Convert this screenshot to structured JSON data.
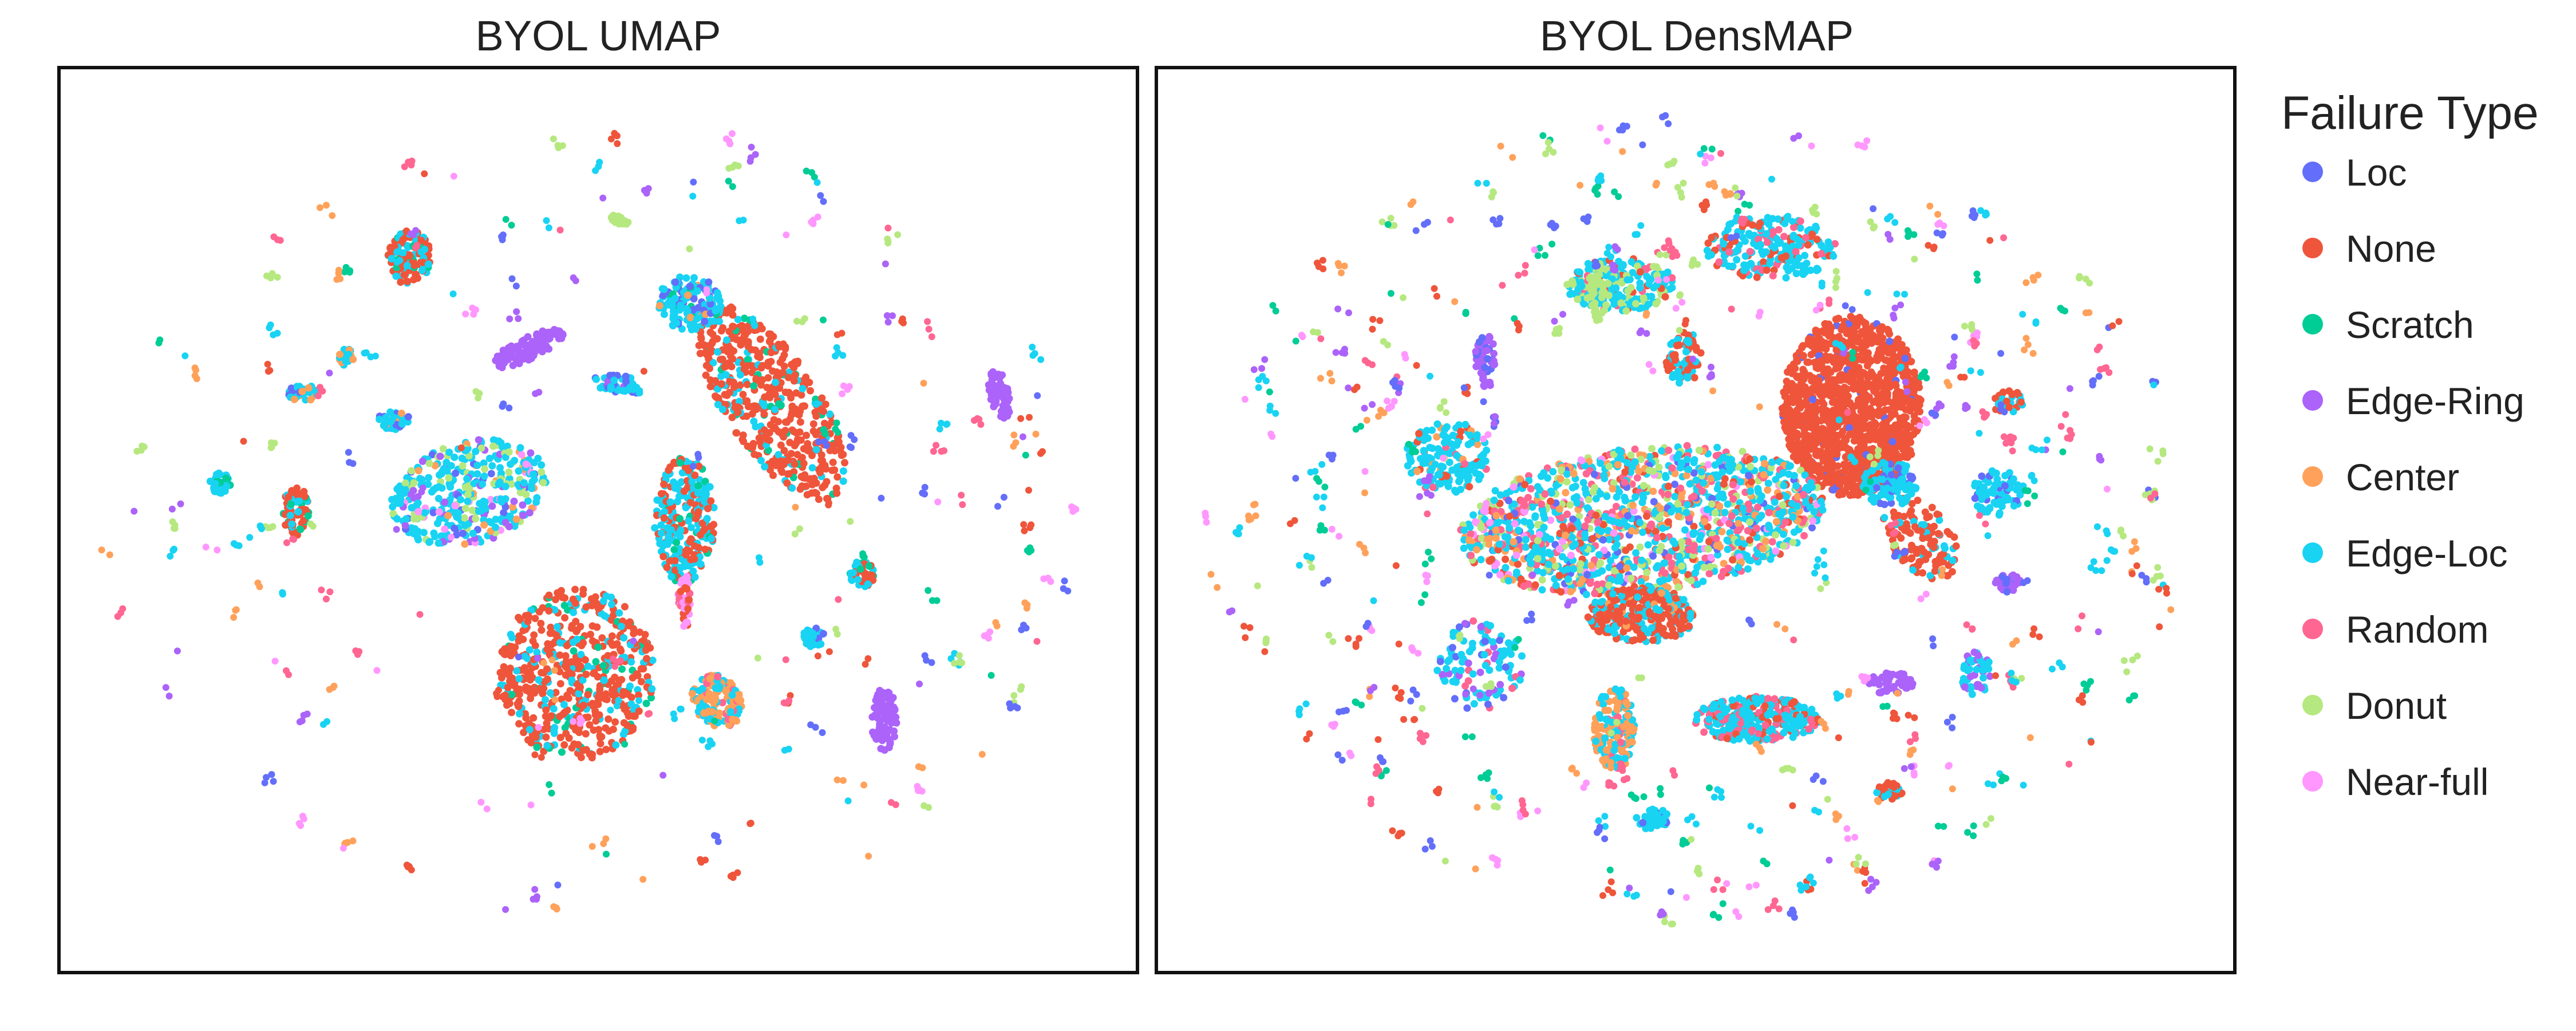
{
  "chart_data": [
    {
      "type": "scatter",
      "title": "BYOL UMAP",
      "xlabel": "",
      "ylabel": "",
      "grid": false,
      "axis_ticks": false,
      "clusters": [
        {
          "x": 0.66,
          "y": 0.37,
          "rx": 0.045,
          "ry": 0.12,
          "rot": -28,
          "n": 520,
          "mix": {
            "None": 0.82,
            "Edge-Loc": 0.12,
            "Scratch": 0.06
          }
        },
        {
          "x": 0.48,
          "y": 0.67,
          "rx": 0.072,
          "ry": 0.095,
          "rot": 0,
          "n": 560,
          "mix": {
            "None": 0.72,
            "Edge-Loc": 0.22,
            "Scratch": 0.06
          }
        },
        {
          "x": 0.58,
          "y": 0.5,
          "rx": 0.028,
          "ry": 0.07,
          "rot": 0,
          "n": 260,
          "mix": {
            "Edge-Loc": 0.5,
            "None": 0.38,
            "Scratch": 0.12
          }
        },
        {
          "x": 0.58,
          "y": 0.59,
          "rx": 0.006,
          "ry": 0.03,
          "rot": 0,
          "n": 40,
          "mix": {
            "Near-full": 0.5,
            "Random": 0.3,
            "None": 0.2
          }
        },
        {
          "x": 0.325,
          "y": 0.21,
          "rx": 0.02,
          "ry": 0.03,
          "rot": 0,
          "n": 120,
          "mix": {
            "None": 0.6,
            "Edge-Loc": 0.3,
            "Scratch": 0.1
          }
        },
        {
          "x": 0.22,
          "y": 0.49,
          "rx": 0.012,
          "ry": 0.028,
          "rot": 0,
          "n": 70,
          "mix": {
            "None": 0.65,
            "Edge-Loc": 0.2,
            "Scratch": 0.15
          }
        },
        {
          "x": 0.38,
          "y": 0.47,
          "rx": 0.075,
          "ry": 0.055,
          "rot": -25,
          "n": 380,
          "mix": {
            "Edge-Loc": 0.55,
            "Donut": 0.18,
            "Edge-Ring": 0.1,
            "Loc": 0.08,
            "Near-full": 0.05,
            "Center": 0.04
          }
        },
        {
          "x": 0.435,
          "y": 0.31,
          "rx": 0.038,
          "ry": 0.012,
          "rot": -30,
          "n": 110,
          "mix": {
            "Edge-Ring": 1
          }
        },
        {
          "x": 0.585,
          "y": 0.26,
          "rx": 0.03,
          "ry": 0.03,
          "rot": 0,
          "n": 140,
          "mix": {
            "Edge-Loc": 0.55,
            "Loc": 0.25,
            "Center": 0.1,
            "Scratch": 0.1
          }
        },
        {
          "x": 0.61,
          "y": 0.7,
          "rx": 0.022,
          "ry": 0.03,
          "rot": -20,
          "n": 140,
          "mix": {
            "Center": 0.55,
            "Edge-Loc": 0.35,
            "Random": 0.1
          }
        },
        {
          "x": 0.765,
          "y": 0.72,
          "rx": 0.012,
          "ry": 0.035,
          "rot": 0,
          "n": 90,
          "mix": {
            "Edge-Ring": 1
          }
        },
        {
          "x": 0.872,
          "y": 0.36,
          "rx": 0.009,
          "ry": 0.028,
          "rot": -10,
          "n": 60,
          "mix": {
            "Edge-Ring": 1
          }
        },
        {
          "x": 0.52,
          "y": 0.35,
          "rx": 0.025,
          "ry": 0.01,
          "rot": 10,
          "n": 50,
          "mix": {
            "Edge-Loc": 0.6,
            "Loc": 0.3,
            "Edge-Ring": 0.1
          }
        },
        {
          "x": 0.225,
          "y": 0.36,
          "rx": 0.016,
          "ry": 0.01,
          "rot": 0,
          "n": 40,
          "mix": {
            "Edge-Loc": 0.7,
            "Center": 0.2,
            "Loc": 0.1
          }
        },
        {
          "x": 0.31,
          "y": 0.39,
          "rx": 0.016,
          "ry": 0.01,
          "rot": 0,
          "n": 40,
          "mix": {
            "Edge-Loc": 0.7,
            "Loc": 0.2,
            "Center": 0.1
          }
        },
        {
          "x": 0.745,
          "y": 0.56,
          "rx": 0.012,
          "ry": 0.015,
          "rot": 0,
          "n": 40,
          "mix": {
            "Edge-Loc": 0.5,
            "None": 0.35,
            "Scratch": 0.15
          }
        },
        {
          "x": 0.15,
          "y": 0.46,
          "rx": 0.01,
          "ry": 0.012,
          "rot": 0,
          "n": 35,
          "mix": {
            "Edge-Loc": 0.8,
            "Scratch": 0.2
          }
        },
        {
          "x": 0.7,
          "y": 0.63,
          "rx": 0.01,
          "ry": 0.012,
          "rot": 0,
          "n": 35,
          "mix": {
            "Edge-Loc": 0.8,
            "Loc": 0.2
          }
        },
        {
          "x": 0.267,
          "y": 0.32,
          "rx": 0.007,
          "ry": 0.01,
          "rot": 0,
          "n": 25,
          "mix": {
            "Edge-Loc": 0.7,
            "Center": 0.3
          }
        },
        {
          "x": 0.52,
          "y": 0.17,
          "rx": 0.01,
          "ry": 0.006,
          "rot": 30,
          "n": 20,
          "mix": {
            "Donut": 1
          }
        }
      ],
      "scatter_points": 200
    },
    {
      "type": "scatter",
      "title": "BYOL DensMAP",
      "xlabel": "",
      "ylabel": "",
      "grid": false,
      "axis_ticks": false,
      "clusters": [
        {
          "x": 0.645,
          "y": 0.375,
          "rx": 0.065,
          "ry": 0.1,
          "rot": 0,
          "n": 1300,
          "mix": {
            "None": 0.97,
            "Loc": 0.03
          }
        },
        {
          "x": 0.45,
          "y": 0.5,
          "rx": 0.17,
          "ry": 0.08,
          "rot": -8,
          "n": 1400,
          "mix": {
            "Edge-Loc": 0.38,
            "Random": 0.18,
            "Donut": 0.14,
            "Center": 0.1,
            "None": 0.08,
            "Near-full": 0.06,
            "Loc": 0.06
          }
        },
        {
          "x": 0.45,
          "y": 0.605,
          "rx": 0.05,
          "ry": 0.03,
          "rot": 0,
          "n": 280,
          "mix": {
            "None": 0.65,
            "Edge-Loc": 0.3,
            "Center": 0.05
          }
        },
        {
          "x": 0.555,
          "y": 0.72,
          "rx": 0.06,
          "ry": 0.025,
          "rot": 0,
          "n": 300,
          "mix": {
            "Edge-Loc": 0.65,
            "Random": 0.2,
            "None": 0.15
          }
        },
        {
          "x": 0.425,
          "y": 0.73,
          "rx": 0.02,
          "ry": 0.045,
          "rot": 0,
          "n": 160,
          "mix": {
            "Center": 0.55,
            "Edge-Loc": 0.4,
            "Random": 0.05
          }
        },
        {
          "x": 0.49,
          "y": 0.32,
          "rx": 0.018,
          "ry": 0.03,
          "rot": 0,
          "n": 80,
          "mix": {
            "None": 0.6,
            "Edge-Loc": 0.4
          }
        },
        {
          "x": 0.43,
          "y": 0.24,
          "rx": 0.05,
          "ry": 0.03,
          "rot": 0,
          "n": 230,
          "mix": {
            "Edge-Loc": 0.6,
            "Donut": 0.25,
            "None": 0.1,
            "Random": 0.05
          }
        },
        {
          "x": 0.57,
          "y": 0.2,
          "rx": 0.06,
          "ry": 0.035,
          "rot": 0,
          "n": 220,
          "mix": {
            "Edge-Loc": 0.65,
            "None": 0.25,
            "Random": 0.1
          }
        },
        {
          "x": 0.71,
          "y": 0.52,
          "rx": 0.03,
          "ry": 0.05,
          "rot": -30,
          "n": 120,
          "mix": {
            "None": 0.8,
            "Edge-Loc": 0.2
          }
        },
        {
          "x": 0.68,
          "y": 0.46,
          "rx": 0.025,
          "ry": 0.025,
          "rot": 0,
          "n": 100,
          "mix": {
            "Edge-Loc": 0.9,
            "Loc": 0.1
          }
        },
        {
          "x": 0.78,
          "y": 0.47,
          "rx": 0.025,
          "ry": 0.025,
          "rot": 0,
          "n": 80,
          "mix": {
            "Edge-Loc": 0.85,
            "Loc": 0.15
          }
        },
        {
          "x": 0.27,
          "y": 0.43,
          "rx": 0.04,
          "ry": 0.04,
          "rot": 0,
          "n": 160,
          "mix": {
            "Edge-Loc": 0.7,
            "None": 0.15,
            "Center": 0.1,
            "Random": 0.05
          }
        },
        {
          "x": 0.3,
          "y": 0.66,
          "rx": 0.04,
          "ry": 0.05,
          "rot": 0,
          "n": 110,
          "mix": {
            "Edge-Loc": 0.55,
            "Edge-Ring": 0.2,
            "Loc": 0.15,
            "Random": 0.1
          }
        },
        {
          "x": 0.76,
          "y": 0.67,
          "rx": 0.015,
          "ry": 0.025,
          "rot": 0,
          "n": 50,
          "mix": {
            "Edge-Loc": 0.6,
            "Edge-Ring": 0.4
          }
        },
        {
          "x": 0.68,
          "y": 0.68,
          "rx": 0.022,
          "ry": 0.012,
          "rot": 0,
          "n": 50,
          "mix": {
            "Edge-Ring": 1
          }
        },
        {
          "x": 0.305,
          "y": 0.325,
          "rx": 0.01,
          "ry": 0.03,
          "rot": 0,
          "n": 50,
          "mix": {
            "Edge-Ring": 0.85,
            "Loc": 0.15
          }
        },
        {
          "x": 0.79,
          "y": 0.57,
          "rx": 0.012,
          "ry": 0.01,
          "rot": 0,
          "n": 30,
          "mix": {
            "Edge-Ring": 0.7,
            "Loc": 0.3
          }
        },
        {
          "x": 0.46,
          "y": 0.83,
          "rx": 0.015,
          "ry": 0.012,
          "rot": 0,
          "n": 40,
          "mix": {
            "Edge-Loc": 0.9,
            "Loc": 0.1
          }
        },
        {
          "x": 0.68,
          "y": 0.8,
          "rx": 0.012,
          "ry": 0.01,
          "rot": 0,
          "n": 35,
          "mix": {
            "None": 0.7,
            "Edge-Loc": 0.3
          }
        },
        {
          "x": 0.41,
          "y": 0.25,
          "rx": 0.01,
          "ry": 0.03,
          "rot": 0,
          "n": 40,
          "mix": {
            "Donut": 1
          }
        },
        {
          "x": 0.79,
          "y": 0.37,
          "rx": 0.014,
          "ry": 0.014,
          "rot": 0,
          "n": 35,
          "mix": {
            "None": 0.6,
            "Edge-Loc": 0.4
          }
        }
      ],
      "scatter_points": 420
    }
  ],
  "legend": {
    "title": "Failure Type",
    "placement": "right",
    "items": [
      {
        "label": "Loc",
        "color": "#636efa"
      },
      {
        "label": "None",
        "color": "#ef553b"
      },
      {
        "label": "Scratch",
        "color": "#00cc96"
      },
      {
        "label": "Edge-Ring",
        "color": "#ab63fa"
      },
      {
        "label": "Center",
        "color": "#ffa15a"
      },
      {
        "label": "Edge-Loc",
        "color": "#19d3f3"
      },
      {
        "label": "Random",
        "color": "#ff6692"
      },
      {
        "label": "Donut",
        "color": "#b6e880"
      },
      {
        "label": "Near-full",
        "color": "#ff97ff"
      }
    ]
  }
}
